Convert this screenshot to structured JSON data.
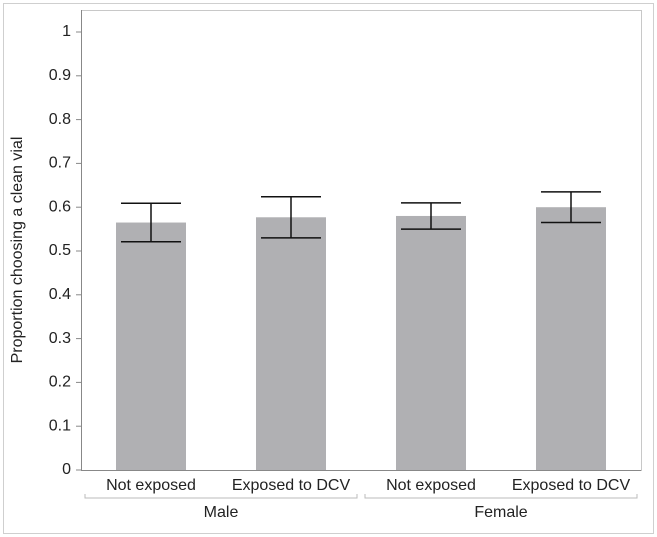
{
  "chart_data": {
    "type": "bar",
    "y_label": "Proportion choosing a clean vial",
    "groups": [
      {
        "label": "Male",
        "categories": [
          "Not exposed",
          "Exposed to DCV"
        ]
      },
      {
        "label": "Female",
        "categories": [
          "Not exposed",
          "Exposed to DCV"
        ]
      }
    ],
    "values": [
      0.565,
      0.577,
      0.58,
      0.6
    ],
    "errors": [
      0.044,
      0.047,
      0.03,
      0.035
    ],
    "color": "#b0b0b3",
    "ylim": [
      0,
      1
    ],
    "yticks": [
      0,
      0.1,
      0.2,
      0.3,
      0.4,
      0.5,
      0.6,
      0.7,
      0.8,
      0.9,
      1
    ]
  }
}
